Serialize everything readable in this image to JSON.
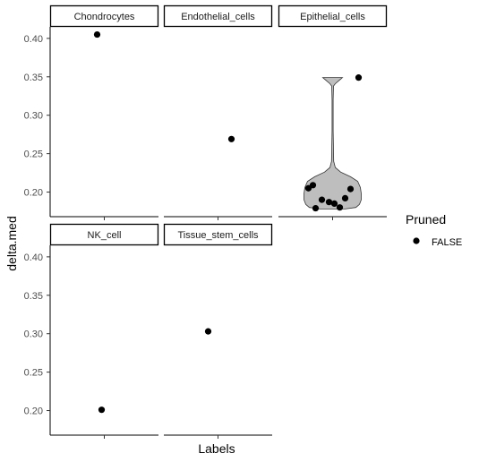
{
  "chart_data": {
    "type": "scatter",
    "xlabel": "Labels",
    "ylabel": "delta.med",
    "y_ticks": [
      "0.20",
      "0.25",
      "0.30",
      "0.35",
      "0.40"
    ],
    "ylim": [
      0.168,
      0.415
    ],
    "panels": [
      {
        "label": "Chondrocytes",
        "points": [
          0.405
        ]
      },
      {
        "label": "Endothelial_cells",
        "points": [
          0.269
        ]
      },
      {
        "label": "Epithelial_cells",
        "points": [
          0.349,
          0.209,
          0.204,
          0.205,
          0.192,
          0.19,
          0.187,
          0.185,
          0.18,
          0.179
        ],
        "violin": true
      },
      {
        "label": "NK_cell",
        "points": [
          0.201
        ]
      },
      {
        "label": "Tissue_stem_cells",
        "points": [
          0.303
        ]
      }
    ],
    "legend": {
      "title": "Pruned",
      "entries": [
        "FALSE"
      ],
      "position": "right"
    },
    "grid": false
  }
}
